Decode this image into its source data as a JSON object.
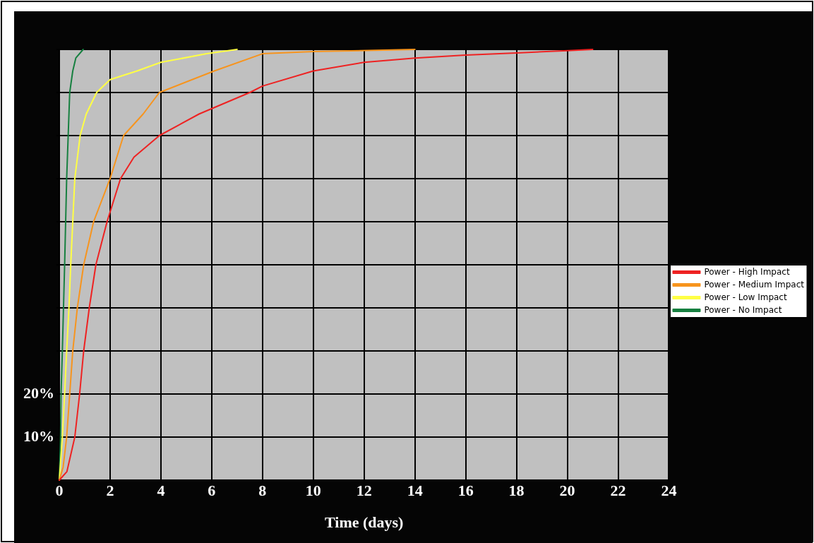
{
  "chart_data": {
    "type": "line",
    "xlabel": "Time (days)",
    "xlim": [
      0,
      24
    ],
    "xticks": [
      0,
      2,
      4,
      6,
      8,
      10,
      12,
      14,
      16,
      18,
      20,
      22,
      24
    ],
    "ylim": [
      0,
      100
    ],
    "yticks": [
      {
        "value": 0,
        "label": null
      },
      {
        "value": 10,
        "label": "10%"
      },
      {
        "value": 20,
        "label": "20%"
      },
      {
        "value": 30,
        "label": null
      },
      {
        "value": 40,
        "label": null
      },
      {
        "value": 50,
        "label": null
      },
      {
        "value": 60,
        "label": null
      },
      {
        "value": 70,
        "label": null
      },
      {
        "value": 80,
        "label": null
      },
      {
        "value": 90,
        "label": null
      },
      {
        "value": 100,
        "label": null
      }
    ],
    "grid": true,
    "legend": "right",
    "marker": "none",
    "line_style": "solid",
    "series": [
      {
        "name": "Power - High Impact",
        "color": "#ee2222",
        "x": [
          0,
          0.3,
          0.61,
          0.8,
          0.96,
          1.18,
          1.44,
          1.88,
          2.41,
          2.94,
          3.94,
          5.5,
          7.5,
          8,
          10,
          12,
          14,
          16,
          18,
          20,
          21
        ],
        "values": [
          0,
          2,
          10,
          20,
          30,
          40,
          50,
          60,
          70,
          75,
          80,
          85,
          90,
          91.5,
          95,
          97,
          98,
          98.7,
          99.2,
          99.7,
          100
        ]
      },
      {
        "name": "Power - Medium Impact",
        "color": "#f7941d",
        "x": [
          0,
          0.15,
          0.29,
          0.41,
          0.53,
          0.71,
          0.96,
          1.35,
          2,
          2.53,
          3.3,
          3.94,
          6.1,
          8,
          10,
          14
        ],
        "values": [
          0,
          3,
          10,
          20,
          30,
          40,
          50,
          60,
          70,
          80,
          85,
          90,
          95,
          99,
          99.5,
          100
        ]
      },
      {
        "name": "Power - Low Impact",
        "color": "#ffff44",
        "x": [
          0,
          0.12,
          0.21,
          0.29,
          0.38,
          0.45,
          0.53,
          0.61,
          0.82,
          1.06,
          1.47,
          2,
          3.06,
          4,
          5.8,
          7
        ],
        "values": [
          0,
          10,
          20,
          30,
          40,
          50,
          60,
          70,
          80,
          85,
          90,
          93,
          95,
          97,
          99,
          100
        ]
      },
      {
        "name": "Power - No Impact",
        "color": "#178040",
        "x": [
          0,
          0.05,
          0.07,
          0.12,
          0.21,
          0.29,
          0.35,
          0.41,
          0.53,
          0.65,
          0.94
        ],
        "values": [
          0,
          10,
          20,
          30,
          50,
          70,
          80,
          90,
          95,
          98,
          100
        ]
      }
    ]
  }
}
